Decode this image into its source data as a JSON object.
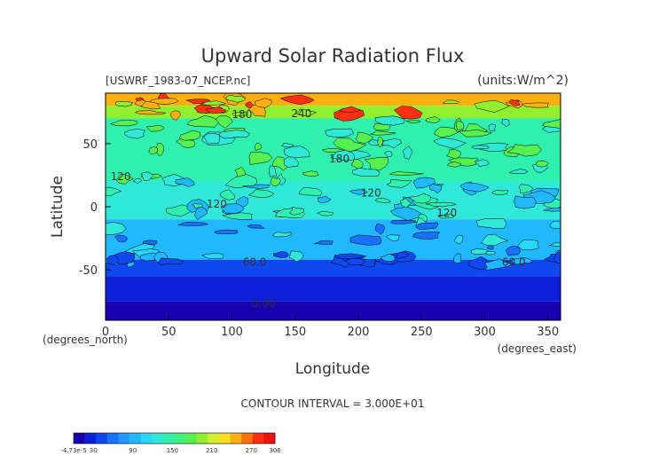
{
  "chart_data": {
    "type": "heatmap",
    "title": "Upward Solar Radiation Flux",
    "file_label": "[USWRF_1983-07_NCEP.nc]",
    "units_label": "(units:W/m^2)",
    "xlabel": "Longitude",
    "ylabel": "Latitude",
    "x_unit_label": "(degrees_east)",
    "y_unit_label": "(degrees_north)",
    "xlim": [
      0,
      360
    ],
    "ylim": [
      -90,
      90
    ],
    "x_ticks": [
      0,
      50,
      100,
      150,
      200,
      250,
      300,
      350
    ],
    "y_ticks": [
      -50,
      0,
      50
    ],
    "contour_interval_text": "CONTOUR INTERVAL = 3.000E+01",
    "contour_labels": [
      {
        "text": "180",
        "lon": 108,
        "lat": 73
      },
      {
        "text": "240",
        "lon": 155,
        "lat": 74
      },
      {
        "text": "180",
        "lon": 185,
        "lat": 38
      },
      {
        "text": "120",
        "lon": 12,
        "lat": 24
      },
      {
        "text": "120",
        "lon": 210,
        "lat": 11
      },
      {
        "text": "120",
        "lon": 88,
        "lat": 2
      },
      {
        "text": "120",
        "lon": 270,
        "lat": -5
      },
      {
        "text": "60.0",
        "lon": 118,
        "lat": -44
      },
      {
        "text": "60.0",
        "lon": 323,
        "lat": -44
      },
      {
        "text": "0.00",
        "lon": 125,
        "lat": -77
      }
    ],
    "lat_bands": [
      {
        "lat_min": 80,
        "lat_max": 90,
        "value": 250
      },
      {
        "lat_min": 70,
        "lat_max": 80,
        "value": 200
      },
      {
        "lat_min": 20,
        "lat_max": 70,
        "value": 150
      },
      {
        "lat_min": -10,
        "lat_max": 20,
        "value": 120
      },
      {
        "lat_min": -42,
        "lat_max": -10,
        "value": 90
      },
      {
        "lat_min": -55,
        "lat_max": -42,
        "value": 45
      },
      {
        "lat_min": -75,
        "lat_max": -55,
        "value": 20
      },
      {
        "lat_min": -90,
        "lat_max": -75,
        "value": 0
      }
    ],
    "colorbar": {
      "min_label": "-4.73e-5",
      "tick_labels": [
        "30",
        "90",
        "150",
        "210",
        "270",
        "306"
      ],
      "colors": [
        "#1a00b0",
        "#0b20d8",
        "#1048f0",
        "#1870ff",
        "#2098ff",
        "#20b8ff",
        "#28d8f8",
        "#30e8d8",
        "#30f0b0",
        "#40f080",
        "#58f050",
        "#90f030",
        "#d0f030",
        "#f8e020",
        "#ffb010",
        "#ff7010",
        "#ff3010",
        "#f01010"
      ]
    }
  }
}
